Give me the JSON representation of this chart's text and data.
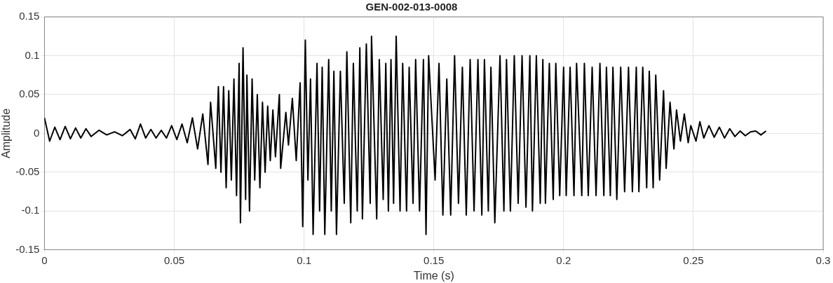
{
  "chart_data": {
    "type": "line",
    "title": "GEN-002-013-0008",
    "xlabel": "Time (s)",
    "ylabel": "Amplitude",
    "xlim": [
      0,
      0.3
    ],
    "xticks": [
      0,
      0.05,
      0.1,
      0.15,
      0.2,
      0.25,
      0.3
    ],
    "ylim": [
      -0.15,
      0.15
    ],
    "yticks": [
      -0.15,
      -0.1,
      -0.05,
      0,
      0.05,
      0.1,
      0.15
    ],
    "grid": true,
    "legend": false,
    "marker": "none",
    "line_style": "solid",
    "series": [
      {
        "color": "#000000",
        "x": [
          0,
          0.002,
          0.004,
          0.006,
          0.008,
          0.01,
          0.012,
          0.014,
          0.016,
          0.018,
          0.021,
          0.024,
          0.027,
          0.03,
          0.033,
          0.035,
          0.037,
          0.039,
          0.041,
          0.043,
          0.045,
          0.047,
          0.049,
          0.051,
          0.053,
          0.055,
          0.057,
          0.059,
          0.061,
          0.063,
          0.064,
          0.066,
          0.067,
          0.068,
          0.069,
          0.07,
          0.071,
          0.072,
          0.073,
          0.074,
          0.075,
          0.0755,
          0.0765,
          0.0775,
          0.078,
          0.079,
          0.08,
          0.081,
          0.082,
          0.083,
          0.084,
          0.085,
          0.086,
          0.087,
          0.088,
          0.089,
          0.0905,
          0.091,
          0.093,
          0.094,
          0.0955,
          0.097,
          0.0985,
          0.0995,
          0.1005,
          0.1015,
          0.1025,
          0.1035,
          0.105,
          0.106,
          0.107,
          0.108,
          0.1095,
          0.1105,
          0.1115,
          0.1125,
          0.114,
          0.1155,
          0.1165,
          0.118,
          0.119,
          0.1205,
          0.1215,
          0.1225,
          0.124,
          0.1255,
          0.126,
          0.128,
          0.129,
          0.1305,
          0.1315,
          0.1325,
          0.1335,
          0.1345,
          0.1355,
          0.137,
          0.138,
          0.1395,
          0.1405,
          0.142,
          0.143,
          0.1445,
          0.146,
          0.147,
          0.148,
          0.1505,
          0.152,
          0.1535,
          0.155,
          0.1565,
          0.158,
          0.1595,
          0.161,
          0.1625,
          0.164,
          0.1655,
          0.167,
          0.1685,
          0.1695,
          0.171,
          0.172,
          0.1735,
          0.1755,
          0.177,
          0.178,
          0.1795,
          0.181,
          0.1825,
          0.184,
          0.1855,
          0.187,
          0.188,
          0.1895,
          0.191,
          0.192,
          0.193,
          0.1945,
          0.196,
          0.197,
          0.1985,
          0.2,
          0.201,
          0.2025,
          0.204,
          0.205,
          0.207,
          0.208,
          0.2095,
          0.211,
          0.2125,
          0.214,
          0.2155,
          0.2165,
          0.218,
          0.219,
          0.2205,
          0.222,
          0.2235,
          0.225,
          0.2265,
          0.228,
          0.229,
          0.2305,
          0.232,
          0.233,
          0.2345,
          0.2355,
          0.237,
          0.2385,
          0.2395,
          0.241,
          0.2425,
          0.2435,
          0.245,
          0.2465,
          0.248,
          0.249,
          0.251,
          0.2525,
          0.254,
          0.256,
          0.258,
          0.26,
          0.262,
          0.264,
          0.266,
          0.268,
          0.27,
          0.272,
          0.274,
          0.276,
          0.278
        ],
        "values": [
          0.02,
          -0.01,
          0.008,
          -0.008,
          0.009,
          -0.007,
          0.007,
          -0.006,
          0.006,
          -0.004,
          0.004,
          -0.002,
          0.002,
          -0.003,
          0.005,
          -0.007,
          0.012,
          -0.006,
          0.005,
          -0.006,
          0.004,
          -0.006,
          0.01,
          -0.008,
          0.012,
          -0.012,
          0.02,
          -0.02,
          0.025,
          -0.04,
          0.04,
          -0.045,
          0.06,
          -0.05,
          0.06,
          -0.07,
          0.055,
          -0.06,
          0.07,
          -0.08,
          0.09,
          -0.115,
          0.11,
          -0.085,
          0.075,
          -0.1,
          0.07,
          -0.06,
          0.05,
          -0.07,
          0.04,
          -0.05,
          0.035,
          -0.035,
          0.03,
          -0.03,
          0.05,
          -0.045,
          0.027,
          -0.015,
          0.045,
          -0.035,
          0.065,
          -0.12,
          0.12,
          -0.06,
          0.07,
          -0.13,
          0.09,
          -0.1,
          0.085,
          -0.13,
          0.095,
          -0.1,
          0.08,
          -0.13,
          0.08,
          -0.09,
          0.105,
          -0.115,
          0.09,
          -0.1,
          0.11,
          -0.11,
          0.115,
          -0.09,
          0.125,
          -0.11,
          0.095,
          -0.085,
          0.09,
          -0.1,
          0.095,
          -0.09,
          0.125,
          -0.1,
          0.09,
          -0.1,
          0.085,
          -0.09,
          0.095,
          -0.1,
          0.095,
          -0.13,
          0.1,
          -0.06,
          0.09,
          -0.105,
          0.07,
          -0.105,
          0.1,
          -0.09,
          0.085,
          -0.105,
          0.095,
          -0.1,
          0.095,
          -0.105,
          0.095,
          -0.1,
          0.085,
          -0.115,
          0.1,
          -0.1,
          0.095,
          -0.1,
          0.1,
          -0.09,
          0.1,
          -0.095,
          0.1,
          -0.1,
          0.1,
          -0.09,
          0.095,
          -0.09,
          0.09,
          -0.085,
          0.09,
          -0.08,
          0.085,
          -0.08,
          0.085,
          -0.08,
          0.09,
          -0.08,
          0.09,
          -0.08,
          0.085,
          -0.08,
          0.09,
          -0.08,
          0.085,
          -0.08,
          0.085,
          -0.085,
          0.085,
          -0.075,
          0.085,
          -0.075,
          0.085,
          -0.075,
          0.085,
          -0.07,
          0.08,
          -0.07,
          0.075,
          -0.06,
          0.055,
          -0.045,
          0.04,
          -0.02,
          0.03,
          -0.01,
          0.025,
          -0.012,
          0.01,
          -0.01,
          0.015,
          -0.006,
          0.01,
          -0.005,
          0.008,
          -0.006,
          0.006,
          -0.004,
          0.003,
          -0.003,
          0.002,
          0.003,
          -0.002,
          0.003
        ]
      }
    ]
  }
}
